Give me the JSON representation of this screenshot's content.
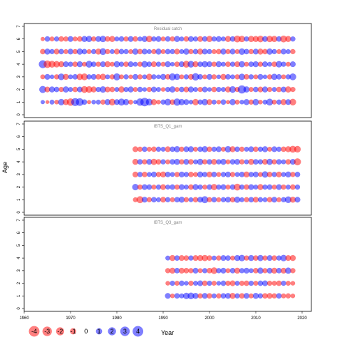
{
  "chart_data": {
    "type": "scatter",
    "subtype": "bubble",
    "xlabel": "Year",
    "ylabel": "Age",
    "x_range": [
      1960,
      2022
    ],
    "x_ticks": [
      1960,
      1970,
      1980,
      1990,
      2000,
      2010,
      2020
    ],
    "y_range": [
      0,
      7
    ],
    "y_ticks": [
      0,
      1,
      2,
      3,
      4,
      5,
      6,
      7
    ],
    "colors": {
      "positive": "#0000ff",
      "negative": "#ff0000"
    },
    "opacity": 0.5,
    "legend": {
      "position": "bottom-left",
      "values": [
        "-4",
        "-3",
        "-2",
        "-1",
        "0",
        "1",
        "2",
        "3",
        "4"
      ]
    },
    "panels": [
      {
        "title": "Residual catch",
        "year_start": 1964,
        "year_end": 2018,
        "ages": [
          1,
          2,
          3,
          4,
          5,
          6
        ],
        "residuals": {
          "1": [
            0.3,
            -0.2,
            0.5,
            -0.4,
            1.1,
            -0.9,
            -1.6,
            1.9,
            1.8,
            0.7,
            -0.3,
            0.4,
            0.5,
            -0.6,
            0.9,
            -1.2,
            0.8,
            1.4,
            1.0,
            -0.5,
            0.3,
            1.6,
            2.3,
            1.3,
            -0.9,
            -0.4,
            0.6,
            1.2,
            -0.7,
            1.5,
            1.0,
            0.8,
            0.4,
            -1.1,
            0.6,
            1.1,
            -0.8,
            0.5,
            -0.4,
            0.7,
            -0.3,
            1.0,
            -0.5,
            0.4,
            0.9,
            -0.6,
            1.1,
            -0.4,
            0.5,
            1.3,
            -0.5,
            0.6,
            -0.9,
            0.8,
            -1.2
          ],
          "2": [
            1.4,
            -0.8,
            0.9,
            0.7,
            -0.6,
            1.0,
            0.5,
            -0.7,
            0.8,
            -1.3,
            -1.2,
            -0.9,
            0.6,
            1.1,
            -0.8,
            -0.7,
            0.5,
            -1.0,
            0.6,
            0.9,
            -0.5,
            0.7,
            0.4,
            -0.6,
            0.8,
            0.5,
            -0.4,
            0.6,
            1.0,
            -0.5,
            0.7,
            -0.8,
            0.9,
            0.5,
            -0.6,
            0.8,
            0.4,
            -0.7,
            0.6,
            0.5,
            -0.9,
            1.2,
            -0.6,
            2.1,
            1.0,
            -0.5,
            0.7,
            -0.8,
            0.9,
            -0.6,
            0.5,
            -0.7,
            0.8,
            -1.0,
            -0.6
          ],
          "3": [
            -0.5,
            0.8,
            0.4,
            -0.6,
            1.2,
            -0.9,
            0.5,
            0.7,
            -1.1,
            -1.3,
            0.6,
            0.8,
            -0.7,
            -1.0,
            0.5,
            -0.6,
            1.4,
            -0.5,
            0.6,
            -0.4,
            0.8,
            -0.6,
            0.5,
            -1.0,
            0.6,
            0.4,
            0.9,
            -0.7,
            1.4,
            1.0,
            -0.5,
            0.6,
            -0.8,
            1.6,
            0.7,
            -0.5,
            0.8,
            -0.6,
            0.4,
            -0.9,
            0.7,
            0.5,
            -0.6,
            1.1,
            -0.7,
            0.6,
            -0.5,
            0.8,
            0.4,
            -0.6,
            1.0,
            0.7,
            -0.5,
            0.6,
            1.3
          ],
          "4": [
            1.9,
            -1.7,
            -1.3,
            -1.1,
            -0.9,
            0.8,
            0.6,
            -0.7,
            0.9,
            -0.5,
            1.3,
            0.7,
            -0.6,
            0.8,
            -0.9,
            -0.5,
            1.0,
            0.6,
            -0.7,
            0.8,
            0.5,
            -0.6,
            1.1,
            0.7,
            -0.8,
            0.6,
            -0.5,
            0.9,
            0.4,
            -0.7,
            0.8,
            -1.3,
            1.2,
            -0.9,
            0.7,
            1.0,
            0.8,
            -0.6,
            0.9,
            0.5,
            -0.7,
            0.6,
            -0.8,
            1.0,
            -0.5,
            0.7,
            0.9,
            -0.6,
            0.8,
            0.5,
            -0.7,
            1.1,
            0.6,
            -0.5,
            0.8
          ],
          "5": [
            -0.7,
            0.9,
            0.6,
            -0.8,
            0.7,
            -0.5,
            0.8,
            -0.6,
            1.0,
            0.7,
            -0.5,
            0.6,
            -0.9,
            1.2,
            -0.6,
            0.5,
            -0.8,
            0.7,
            0.6,
            -0.5,
            1.0,
            -0.7,
            0.8,
            0.5,
            -0.6,
            0.9,
            -0.5,
            0.7,
            0.6,
            -0.8,
            0.5,
            1.0,
            -0.6,
            0.7,
            -0.9,
            0.8,
            0.6,
            -0.5,
            -0.7,
            0.9,
            -0.6,
            0.8,
            -0.5,
            1.1,
            0.7,
            -0.6,
            0.8,
            -0.9,
            -0.7,
            1.0,
            0.6,
            -0.5,
            0.8,
            0.5,
            -0.6
          ],
          "6": [
            -0.3,
            0.7,
            -0.5,
            0.6,
            -0.7,
            -0.6,
            0.8,
            -0.5,
            -0.7,
            0.9,
            1.0,
            -0.6,
            0.8,
            1.1,
            -0.7,
            -0.9,
            0.5,
            0.7,
            -0.6,
            0.8,
            -0.7,
            0.5,
            0.9,
            -1.1,
            0.6,
            0.8,
            -0.5,
            0.7,
            -0.6,
            0.9,
            0.5,
            -0.7,
            0.8,
            0.6,
            -0.8,
            0.7,
            -1.0,
            0.6,
            0.8,
            0.5,
            -0.9,
            0.7,
            -1.3,
            -1.1,
            0.6,
            -1.0,
            -0.9,
            -1.2,
            0.8,
            -1.1,
            -1.0,
            0.7,
            -1.3,
            -0.9,
            0.6
          ]
        }
      },
      {
        "title": "IBTS_Q1_gam",
        "year_start": 1984,
        "year_end": 2019,
        "ages": [
          1,
          2,
          3,
          4,
          5
        ],
        "residuals": {
          "1": [
            -0.5,
            -1.4,
            0.8,
            -0.6,
            0.7,
            0.5,
            -0.8,
            0.6,
            -0.5,
            0.7,
            0.9,
            -0.6,
            0.5,
            -0.7,
            0.8,
            1.4,
            -0.6,
            0.7,
            -0.5,
            0.6,
            0.8,
            -0.7,
            1.0,
            0.5,
            -0.6,
            0.7,
            -0.8,
            0.6,
            0.5,
            -0.7,
            0.8,
            -0.5,
            0.6,
            1.2,
            -0.9,
            0.8
          ],
          "2": [
            1.1,
            -0.6,
            0.8,
            0.7,
            -0.5,
            0.6,
            -0.8,
            0.5,
            0.7,
            -0.6,
            0.8,
            0.5,
            -0.7,
            0.9,
            0.6,
            -0.5,
            0.7,
            -1.0,
            0.6,
            0.8,
            -0.5,
            0.7,
            -1.3,
            0.6,
            -0.7,
            0.8,
            0.5,
            -0.9,
            0.6,
            0.7,
            -0.5,
            0.8,
            -0.6,
            0.5,
            -0.7,
            0.6
          ],
          "3": [
            -0.8,
            0.6,
            -0.7,
            0.5,
            0.8,
            -0.6,
            -0.9,
            0.7,
            0.5,
            -0.6,
            0.8,
            0.6,
            -0.7,
            -0.5,
            0.9,
            0.6,
            -0.8,
            0.7,
            -0.5,
            0.6,
            0.8,
            -0.6,
            0.5,
            0.7,
            -0.9,
            0.6,
            0.8,
            -0.5,
            1.1,
            -0.7,
            0.6,
            -0.8,
            0.5,
            0.9,
            -0.6,
            0.7
          ],
          "4": [
            -0.9,
            0.7,
            -0.6,
            0.8,
            -1.0,
            -0.7,
            0.6,
            -0.5,
            0.7,
            0.9,
            -0.6,
            0.8,
            -0.7,
            0.5,
            1.0,
            -0.6,
            0.7,
            -0.8,
            0.6,
            0.9,
            -0.5,
            0.7,
            0.8,
            -0.6,
            0.5,
            -0.9,
            0.7,
            0.6,
            -0.8,
            1.0,
            -0.6,
            0.7,
            0.5,
            -0.7,
            0.8,
            -1.4
          ],
          "5": [
            -0.8,
            -0.6,
            0.7,
            -0.5,
            -0.7,
            0.6,
            0.5,
            -0.8,
            0.7,
            1.0,
            -0.6,
            0.8,
            0.9,
            -0.5,
            0.7,
            1.0,
            -0.7,
            0.6,
            0.8,
            -0.5,
            1.1,
            -0.9,
            0.7,
            -0.6,
            0.5,
            0.8,
            -0.7,
            0.6,
            0.9,
            -0.5,
            0.8,
            0.6,
            -0.7,
            -0.9,
            -1.3,
            -1.2
          ]
        }
      },
      {
        "title": "IBTS_Q3_gam",
        "year_start": 1991,
        "year_end": 2018,
        "ages": [
          1,
          2,
          3,
          4
        ],
        "residuals": {
          "1": [
            0.8,
            -0.4,
            0.7,
            0.5,
            1.1,
            1.2,
            0.9,
            -0.6,
            0.8,
            -0.7,
            0.5,
            -0.6,
            0.7,
            0.8,
            -0.9,
            0.6,
            -0.7,
            0.8,
            -0.5,
            0.9,
            0.6,
            -0.7,
            -0.8,
            -0.6,
            0.7,
            -0.5,
            -0.6,
            -0.4
          ],
          "2": [
            -0.4,
            0.6,
            -0.5,
            0.7,
            0.4,
            -0.6,
            0.5,
            0.8,
            -0.7,
            0.6,
            -0.5,
            0.4,
            0.7,
            -0.6,
            -0.8,
            0.5,
            -0.6,
            -0.7,
            0.6,
            -0.5,
            0.7,
            0.8,
            -0.6,
            -0.5,
            -0.7,
            0.6,
            -0.5,
            -0.4
          ],
          "3": [
            -0.6,
            -0.9,
            0.7,
            -0.8,
            -0.7,
            -0.6,
            0.8,
            -0.5,
            0.6,
            -0.7,
            -1.2,
            0.6,
            0.8,
            -0.5,
            0.7,
            -0.9,
            0.6,
            0.8,
            0.5,
            -0.7,
            1.0,
            -0.6,
            0.8,
            -0.9,
            0.7,
            -0.8,
            1.0,
            -0.6
          ],
          "4": [
            0.5,
            -0.9,
            0.7,
            -0.8,
            -0.7,
            0.6,
            -0.8,
            -0.9,
            -1.0,
            -0.7,
            0.5,
            -0.6,
            0.8,
            0.7,
            -0.5,
            0.9,
            1.1,
            -0.6,
            0.9,
            -0.7,
            1.0,
            -0.6,
            0.8,
            -0.7,
            0.6,
            1.1,
            -0.8,
            -0.9
          ]
        }
      }
    ]
  }
}
